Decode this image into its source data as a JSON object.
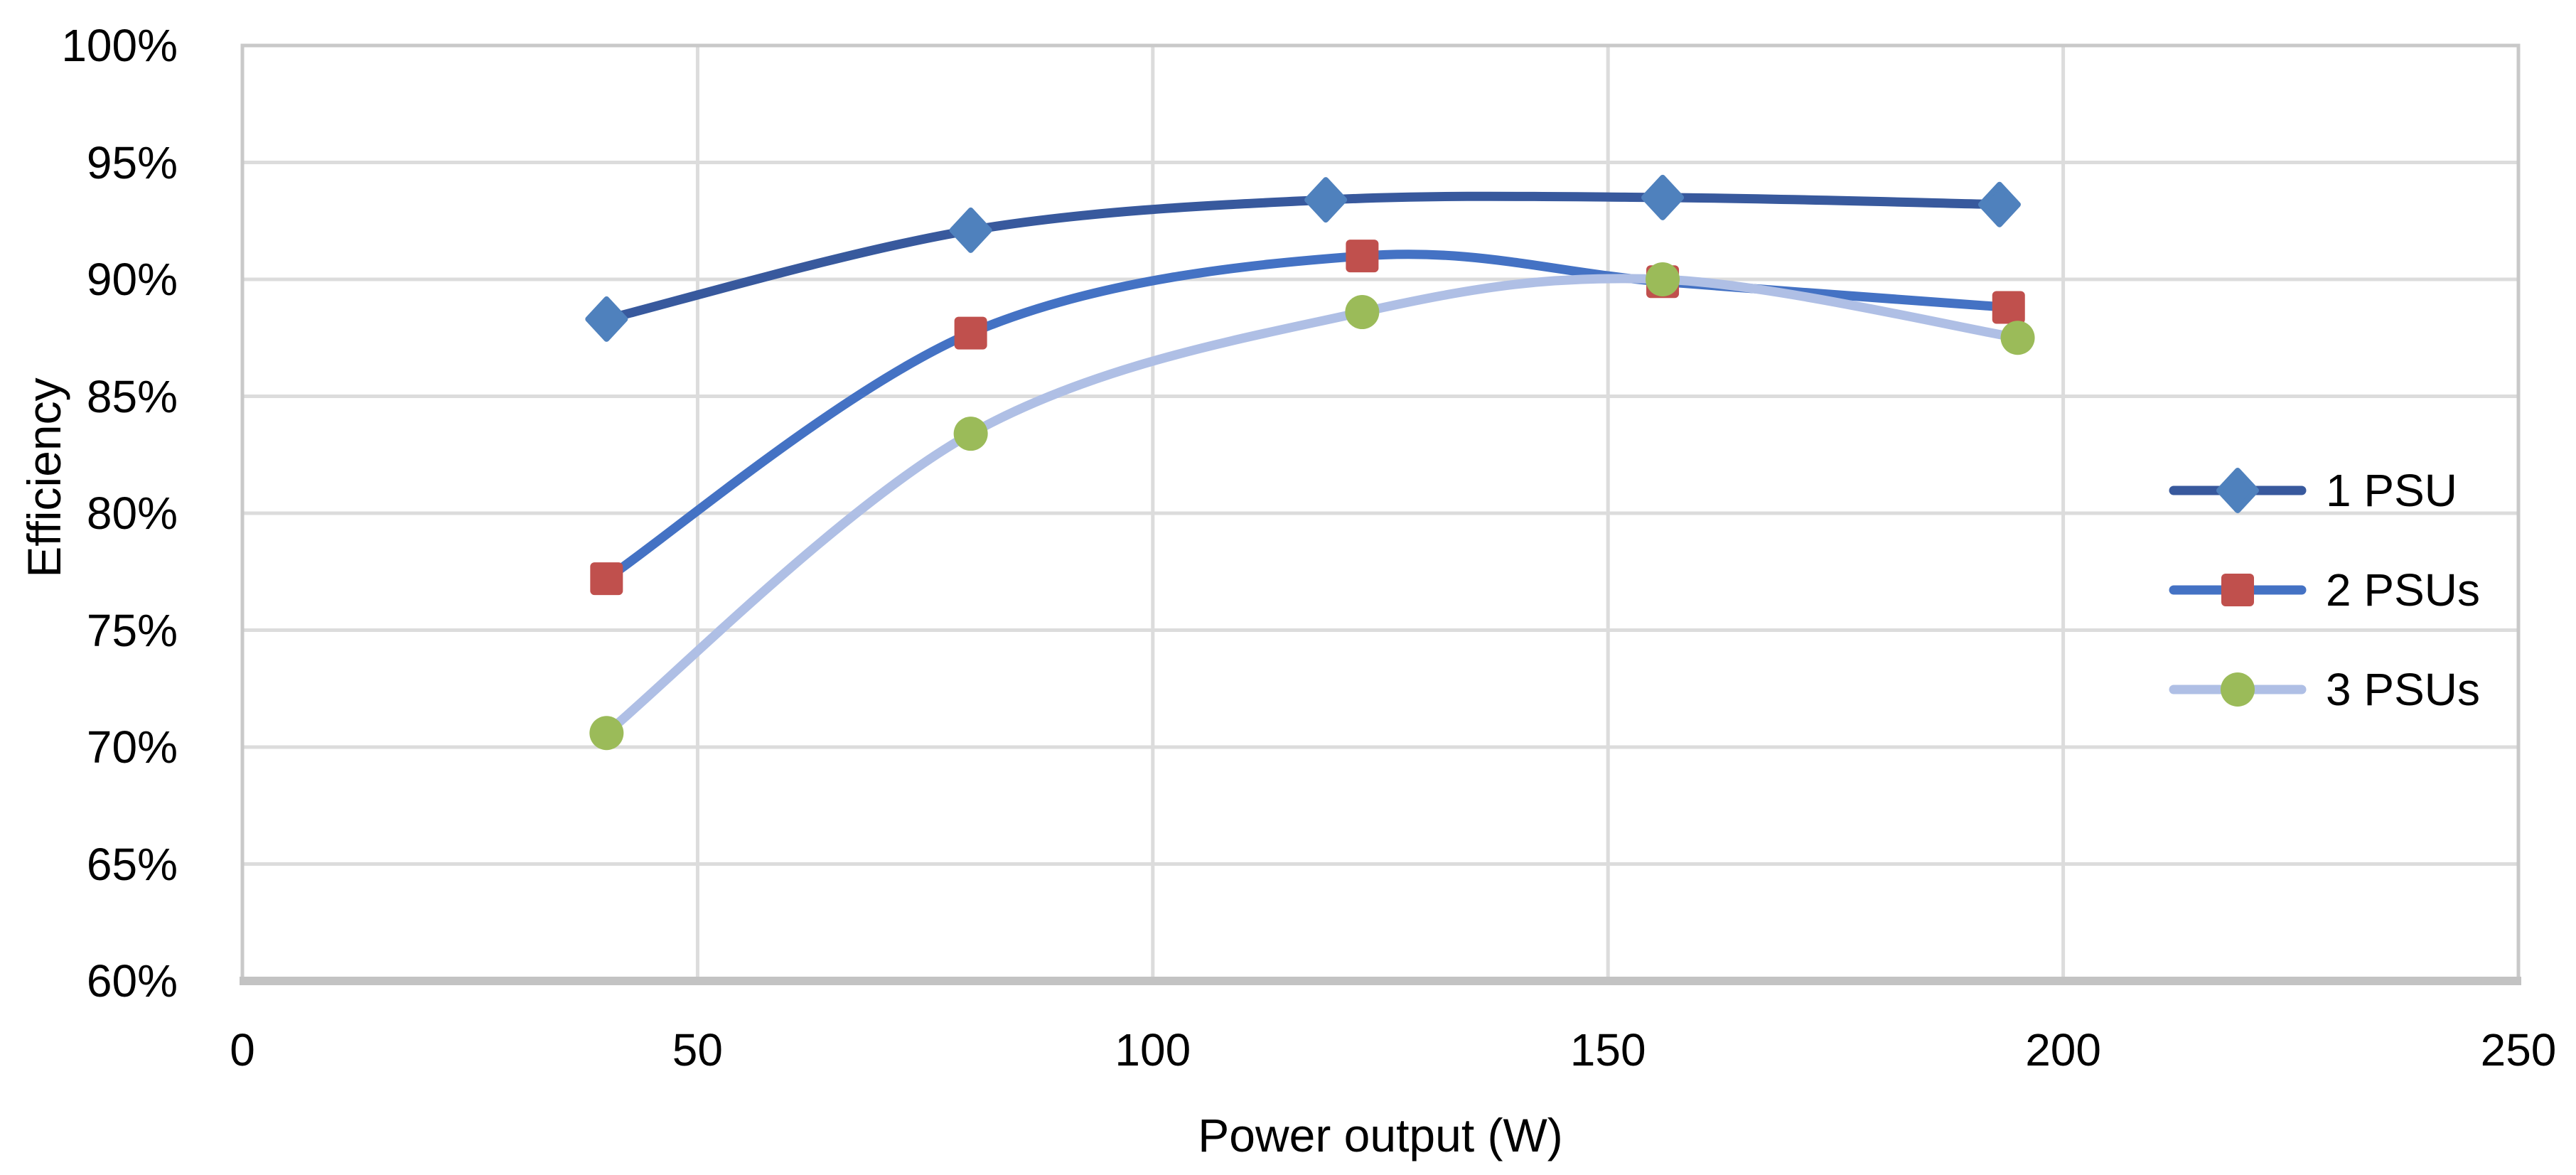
{
  "page": {
    "background": "#ffffff"
  },
  "chart_data": {
    "type": "line",
    "title": "",
    "xlabel": "Power output (W)",
    "ylabel": "Efficiency",
    "xlim": [
      0,
      250
    ],
    "ylim": [
      60,
      100
    ],
    "grid": true,
    "line_smoothing": true,
    "legend_position": "inside-right",
    "x_ticks": [
      {
        "value": 0,
        "label": "0"
      },
      {
        "value": 50,
        "label": "50"
      },
      {
        "value": 100,
        "label": "100"
      },
      {
        "value": 150,
        "label": "150"
      },
      {
        "value": 200,
        "label": "200"
      },
      {
        "value": 250,
        "label": "250"
      }
    ],
    "y_ticks": [
      {
        "value": 100,
        "label": "100%"
      },
      {
        "value": 95,
        "label": "95%"
      },
      {
        "value": 90,
        "label": "90%"
      },
      {
        "value": 85,
        "label": "85%"
      },
      {
        "value": 80,
        "label": "80%"
      },
      {
        "value": 75,
        "label": "75%"
      },
      {
        "value": 70,
        "label": "70%"
      },
      {
        "value": 65,
        "label": "65%"
      },
      {
        "value": 60,
        "label": "60%"
      }
    ],
    "series": [
      {
        "name": "1 PSU",
        "line_color": "#38599D",
        "marker": "diamond",
        "marker_color": "#4F81BD",
        "points": [
          [
            40,
            88.3
          ],
          [
            80,
            92.1
          ],
          [
            119,
            93.4
          ],
          [
            156,
            93.5
          ],
          [
            193,
            93.2
          ]
        ]
      },
      {
        "name": "2 PSUs",
        "line_color": "#4472C4",
        "marker": "square",
        "marker_color": "#C0504D",
        "points": [
          [
            40,
            77.2
          ],
          [
            80,
            87.7
          ],
          [
            123,
            91.0
          ],
          [
            156,
            89.9
          ],
          [
            194,
            88.8
          ]
        ]
      },
      {
        "name": "3 PSUs",
        "line_color": "#AFBFE5",
        "marker": "circle",
        "marker_color": "#9BBB59",
        "points": [
          [
            40,
            70.6
          ],
          [
            80,
            83.4
          ],
          [
            123,
            88.6
          ],
          [
            156,
            90.0
          ],
          [
            195,
            87.5
          ]
        ]
      }
    ],
    "axis_colors": {
      "gridline": "#DCDCDC",
      "plot_border": "#C9C9C9",
      "x_axis_line": "#C3C3C3",
      "text": "#000000"
    }
  }
}
